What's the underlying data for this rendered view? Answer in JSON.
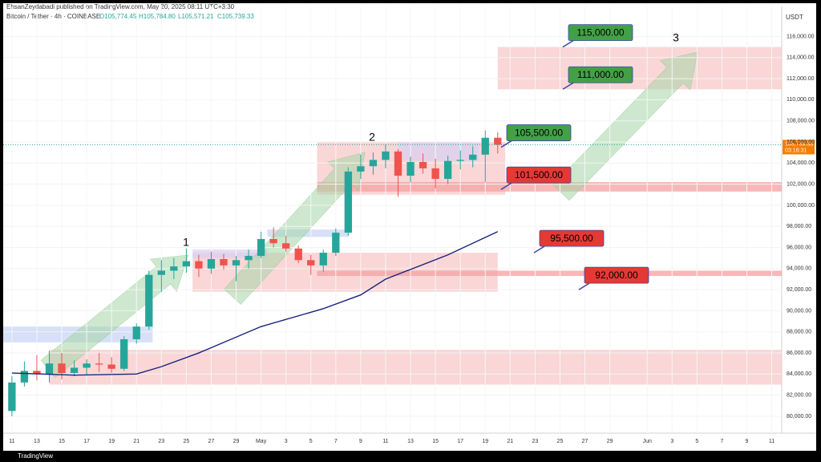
{
  "header": {
    "publisher": "EhsanZeydabadi published on TradingView.com, May 20, 2025 08:11 UTC+3:30",
    "symbol": "Bitcoin / Tether · 4h · COINBASE",
    "ohlc": [
      "O105,774.45",
      "H105,784.80",
      "L105,571.21",
      "C105,739.33"
    ]
  },
  "footer": {
    "brand": "TradingView"
  },
  "chart_data": {
    "type": "candlestick",
    "y_unit": "USDT",
    "x": [
      0,
      1,
      2,
      3,
      4,
      5,
      6,
      7,
      8,
      9,
      10,
      11,
      12,
      13,
      14,
      15,
      16,
      17,
      18,
      19,
      20,
      21,
      22,
      23,
      24,
      25,
      26,
      27,
      28,
      29,
      30,
      31,
      32,
      33,
      34,
      35,
      36,
      37,
      38,
      39
    ],
    "open": [
      80500,
      83200,
      84300,
      84000,
      85000,
      84100,
      84600,
      85000,
      84900,
      84500,
      87300,
      88500,
      93400,
      93800,
      94200,
      94700,
      94000,
      94900,
      94300,
      94800,
      95200,
      96800,
      96400,
      95900,
      94800,
      94300,
      95500,
      97400,
      103200,
      103700,
      104300,
      105100,
      102800,
      104100,
      103500,
      102500,
      104200,
      104300,
      104800,
      106400
    ],
    "high": [
      83800,
      85200,
      85800,
      86200,
      86000,
      85300,
      85400,
      86000,
      85600,
      87600,
      88800,
      93800,
      94800,
      95000,
      95900,
      95300,
      95600,
      95400,
      95200,
      95800,
      97500,
      97900,
      97100,
      96200,
      95300,
      95800,
      97800,
      103600,
      104800,
      105000,
      105800,
      105300,
      104600,
      104900,
      104400,
      104700,
      105200,
      105600,
      107100,
      106900
    ],
    "low": [
      80000,
      82800,
      83400,
      83200,
      83500,
      83800,
      83900,
      84200,
      84100,
      84300,
      86900,
      88200,
      91800,
      93000,
      93600,
      93200,
      93500,
      93900,
      92800,
      94000,
      95000,
      96000,
      95600,
      94500,
      93400,
      93700,
      95200,
      97100,
      102500,
      102900,
      103500,
      100800,
      102200,
      103000,
      101600,
      102000,
      103400,
      103600,
      102200,
      104900
    ],
    "close": [
      83200,
      84300,
      84000,
      85000,
      84100,
      84600,
      85000,
      84900,
      84500,
      87300,
      88500,
      93400,
      93800,
      94200,
      94700,
      94000,
      94900,
      94300,
      94800,
      95200,
      96800,
      96400,
      95900,
      94800,
      94300,
      95500,
      97400,
      103200,
      103700,
      104300,
      105100,
      102800,
      104100,
      103500,
      102500,
      104200,
      104300,
      104800,
      106400,
      105739.33
    ],
    "up_color": "#26a69a",
    "down_color": "#ef5350",
    "ma": {
      "color": "#1a237e",
      "x": [
        0,
        5,
        10,
        12,
        15,
        20,
        25,
        28,
        30,
        35,
        39
      ],
      "values": [
        84100,
        83900,
        84000,
        84700,
        86000,
        88500,
        90200,
        91500,
        93000,
        95300,
        97500
      ]
    },
    "last_price": {
      "value": 105739.33,
      "label": "105,739.33",
      "countdown": "03:18:31"
    },
    "xlim": [
      -0.7,
      61.8
    ],
    "xticks": [
      {
        "value": 0,
        "label": "11"
      },
      {
        "value": 2,
        "label": "13"
      },
      {
        "value": 4,
        "label": "15"
      },
      {
        "value": 6,
        "label": "17"
      },
      {
        "value": 8,
        "label": "19"
      },
      {
        "value": 10,
        "label": "21"
      },
      {
        "value": 12,
        "label": "23"
      },
      {
        "value": 14,
        "label": "25"
      },
      {
        "value": 16,
        "label": "27"
      },
      {
        "value": 18,
        "label": "29"
      },
      {
        "value": 20,
        "label": "May"
      },
      {
        "value": 22,
        "label": "3"
      },
      {
        "value": 24,
        "label": "5"
      },
      {
        "value": 26,
        "label": "7"
      },
      {
        "value": 28,
        "label": "9"
      },
      {
        "value": 30,
        "label": "11"
      },
      {
        "value": 32,
        "label": "13"
      },
      {
        "value": 34,
        "label": "15"
      },
      {
        "value": 36,
        "label": "17"
      },
      {
        "value": 38,
        "label": "19"
      },
      {
        "value": 40,
        "label": "21"
      },
      {
        "value": 42,
        "label": "23"
      },
      {
        "value": 44,
        "label": "25"
      },
      {
        "value": 46,
        "label": "27"
      },
      {
        "value": 48,
        "label": "29"
      },
      {
        "value": 51,
        "label": "Jun"
      },
      {
        "value": 53,
        "label": "3"
      },
      {
        "value": 55,
        "label": "5"
      },
      {
        "value": 57,
        "label": "7"
      },
      {
        "value": 59,
        "label": "9"
      },
      {
        "value": 61,
        "label": "11"
      }
    ],
    "ylim": [
      78400,
      118850
    ],
    "yticks": [
      {
        "value": 80000,
        "label": "80,000.00"
      },
      {
        "value": 82000,
        "label": "82,000.00"
      },
      {
        "value": 84000,
        "label": "84,000.00"
      },
      {
        "value": 86000,
        "label": "86,000.00"
      },
      {
        "value": 88000,
        "label": "88,000.00"
      },
      {
        "value": 90000,
        "label": "90,000.00"
      },
      {
        "value": 92000,
        "label": "92,000.00"
      },
      {
        "value": 94000,
        "label": "94,000.00"
      },
      {
        "value": 96000,
        "label": "96,000.00"
      },
      {
        "value": 98000,
        "label": "98,000.00"
      },
      {
        "value": 100000,
        "label": "100,000.00"
      },
      {
        "value": 102000,
        "label": "102,000.00"
      },
      {
        "value": 104000,
        "label": "104,000.00"
      },
      {
        "value": 106000,
        "label": "106,000.00"
      },
      {
        "value": 108000,
        "label": "108,000.00"
      },
      {
        "value": 110000,
        "label": "110,000.00"
      },
      {
        "value": 112000,
        "label": "112,000.00"
      },
      {
        "value": 114000,
        "label": "114,000.00"
      },
      {
        "value": 116000,
        "label": "116,000.00"
      }
    ],
    "zones": [
      {
        "x": [
          39,
          61.8
        ],
        "y": [
          111000,
          115000
        ],
        "color": "#f8c8c8"
      },
      {
        "x": [
          24.5,
          39.6
        ],
        "y": [
          101000,
          106000
        ],
        "color": "#f8c8c8"
      },
      {
        "x": [
          14.5,
          39
        ],
        "y": [
          91800,
          95500
        ],
        "color": "#f8c8c8"
      },
      {
        "x": [
          3,
          61.8
        ],
        "y": [
          83000,
          86300
        ],
        "color": "#f8c8c8"
      },
      {
        "x": [
          24.5,
          61.8
        ],
        "y": [
          101300,
          102200
        ],
        "color": "#f4a0a0"
      },
      {
        "x": [
          24.5,
          61.8
        ],
        "y": [
          93300,
          93800
        ],
        "color": "#f4a0a0"
      },
      {
        "x": [
          -0.7,
          11.3
        ],
        "y": [
          87000,
          88500
        ],
        "color": "#c9d6f5"
      },
      {
        "x": [
          14.5,
          20.5
        ],
        "y": [
          95000,
          95800
        ],
        "color": "#d8d0f0"
      },
      {
        "x": [
          20.5,
          27
        ],
        "y": [
          97000,
          97700
        ],
        "color": "#c9d6f5"
      },
      {
        "x": [
          31,
          37.5
        ],
        "y": [
          104200,
          106000
        ],
        "color": "#d8d0f0"
      }
    ],
    "levels": [
      {
        "value": 115000,
        "label": "115,000.00",
        "color": "#43a047"
      },
      {
        "value": 111000,
        "label": "111,000.00",
        "color": "#43a047"
      },
      {
        "value": 105500,
        "label": "105,500.00",
        "color": "#43a047"
      },
      {
        "value": 101500,
        "label": "101,500.00",
        "color": "#e53935"
      },
      {
        "value": 95500,
        "label": "95,500.00",
        "color": "#e53935"
      },
      {
        "value": 92000,
        "label": "92,000.00",
        "color": "#e53935"
      }
    ],
    "waves": [
      "1",
      "2",
      "3"
    ]
  }
}
